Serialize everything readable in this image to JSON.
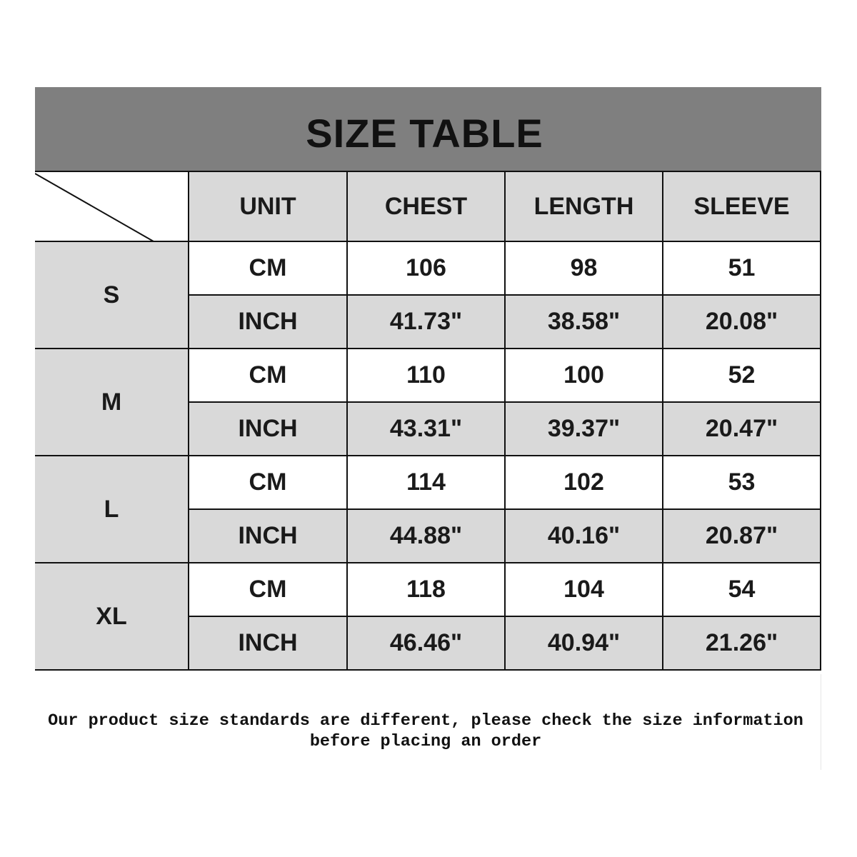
{
  "title": "SIZE TABLE",
  "columns": [
    "UNIT",
    "CHEST",
    "LENGTH",
    "SLEEVE"
  ],
  "sizes": [
    {
      "size": "S",
      "cm": {
        "unit": "CM",
        "chest": "106",
        "length": "98",
        "sleeve": "51"
      },
      "inch": {
        "unit": "INCH",
        "chest": "41.73\"",
        "length": "38.58\"",
        "sleeve": "20.08\""
      }
    },
    {
      "size": "M",
      "cm": {
        "unit": "CM",
        "chest": "110",
        "length": "100",
        "sleeve": "52"
      },
      "inch": {
        "unit": "INCH",
        "chest": "43.31\"",
        "length": "39.37\"",
        "sleeve": "20.47\""
      }
    },
    {
      "size": "L",
      "cm": {
        "unit": "CM",
        "chest": "114",
        "length": "102",
        "sleeve": "53"
      },
      "inch": {
        "unit": "INCH",
        "chest": "44.88\"",
        "length": "40.16\"",
        "sleeve": "20.87\""
      }
    },
    {
      "size": "XL",
      "cm": {
        "unit": "CM",
        "chest": "118",
        "length": "104",
        "sleeve": "54"
      },
      "inch": {
        "unit": "INCH",
        "chest": "46.46\"",
        "length": "40.94\"",
        "sleeve": "21.26\""
      }
    }
  ],
  "note": {
    "line1": "Our product size standards are different, please check the size information",
    "line2": "before placing an order"
  },
  "colors": {
    "title_bar": "#7f7f7f",
    "shaded_cell": "#d9d9d9",
    "border": "#111111"
  }
}
